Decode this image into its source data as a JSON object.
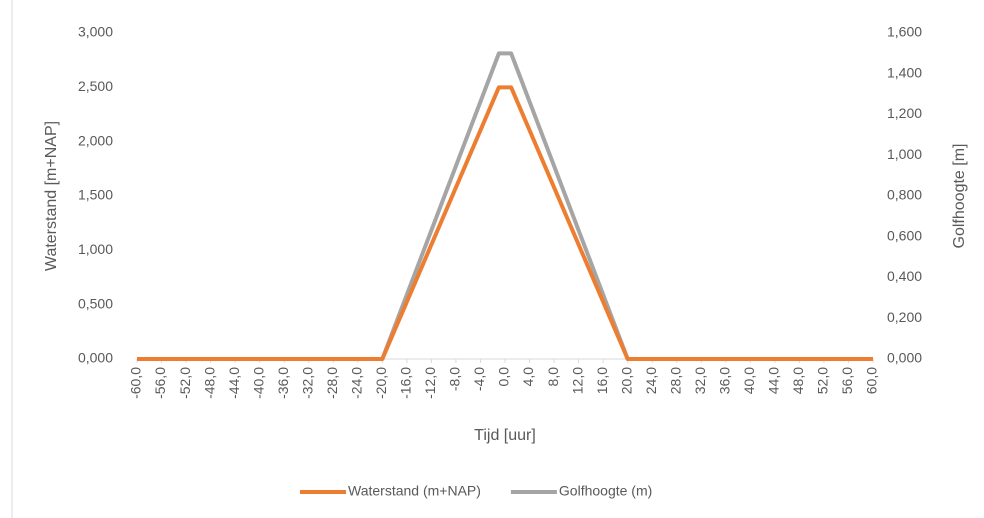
{
  "chart_data": {
    "type": "line",
    "xlabel": "Tijd [uur]",
    "ylabel": "Waterstand [m+NAP]",
    "y2label": "Golfhoogte [m]",
    "xlim": [
      -60,
      60
    ],
    "xticks": [
      {
        "value": -60,
        "label": "-60,0"
      },
      {
        "value": -56,
        "label": "-56,0"
      },
      {
        "value": -52,
        "label": "-52,0"
      },
      {
        "value": -48,
        "label": "-48,0"
      },
      {
        "value": -44,
        "label": "-44,0"
      },
      {
        "value": -40,
        "label": "-40,0"
      },
      {
        "value": -36,
        "label": "-36,0"
      },
      {
        "value": -32,
        "label": "-32,0"
      },
      {
        "value": -28,
        "label": "-28,0"
      },
      {
        "value": -24,
        "label": "-24,0"
      },
      {
        "value": -20,
        "label": "-20,0"
      },
      {
        "value": -16,
        "label": "-16,0"
      },
      {
        "value": -12,
        "label": "-12,0"
      },
      {
        "value": -8,
        "label": "-8,0"
      },
      {
        "value": -4,
        "label": "-4,0"
      },
      {
        "value": 0,
        "label": "0,0"
      },
      {
        "value": 4,
        "label": "4,0"
      },
      {
        "value": 8,
        "label": "8,0"
      },
      {
        "value": 12,
        "label": "12,0"
      },
      {
        "value": 16,
        "label": "16,0"
      },
      {
        "value": 20,
        "label": "20,0"
      },
      {
        "value": 24,
        "label": "24,0"
      },
      {
        "value": 28,
        "label": "28,0"
      },
      {
        "value": 32,
        "label": "32,0"
      },
      {
        "value": 36,
        "label": "36,0"
      },
      {
        "value": 40,
        "label": "40,0"
      },
      {
        "value": 44,
        "label": "44,0"
      },
      {
        "value": 48,
        "label": "48,0"
      },
      {
        "value": 52,
        "label": "52,0"
      },
      {
        "value": 56,
        "label": "56,0"
      },
      {
        "value": 60,
        "label": "60,0"
      }
    ],
    "ylim": [
      0,
      3
    ],
    "yticks": [
      {
        "value": 0,
        "label": "0,000"
      },
      {
        "value": 0.5,
        "label": "0,500"
      },
      {
        "value": 1,
        "label": "1,000"
      },
      {
        "value": 1.5,
        "label": "1,500"
      },
      {
        "value": 2,
        "label": "2,000"
      },
      {
        "value": 2.5,
        "label": "2,500"
      },
      {
        "value": 3,
        "label": "3,000"
      }
    ],
    "y2lim": [
      0,
      1.6
    ],
    "y2ticks": [
      {
        "value": 0,
        "label": "0,000"
      },
      {
        "value": 0.2,
        "label": "0,200"
      },
      {
        "value": 0.4,
        "label": "0,400"
      },
      {
        "value": 0.6,
        "label": "0,600"
      },
      {
        "value": 0.8,
        "label": "0,800"
      },
      {
        "value": 1,
        "label": "1,000"
      },
      {
        "value": 1.2,
        "label": "1,200"
      },
      {
        "value": 1.4,
        "label": "1,400"
      },
      {
        "value": 1.6,
        "label": "1,600"
      }
    ],
    "series": [
      {
        "name": "Waterstand (m+NAP)",
        "color": "#ed7d31",
        "x": [
          -60,
          -20,
          -1,
          1,
          20,
          60
        ],
        "values": [
          0,
          0,
          2.5,
          2.5,
          0,
          0
        ]
      },
      {
        "name": "Golfhoogte (m)",
        "color": "#a5a5a5",
        "axis": "y2",
        "x": [
          -60,
          -20,
          -1,
          1,
          20,
          60
        ],
        "values": [
          0,
          0,
          1.5,
          1.5,
          0,
          0
        ]
      }
    ]
  }
}
